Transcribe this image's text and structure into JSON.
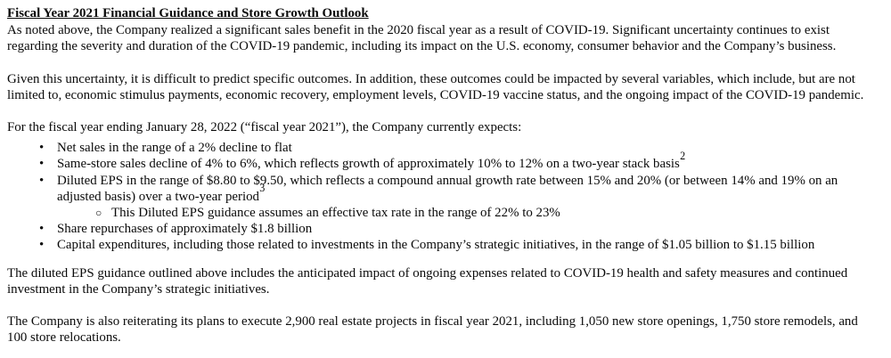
{
  "document": {
    "title": "Fiscal Year 2021 Financial Guidance and Store Growth Outlook",
    "paragraph_1": "As noted above, the Company realized a significant sales benefit in the 2020 fiscal year as a result of COVID-19. Significant uncertainty continues to exist regarding the severity and duration of the COVID-19 pandemic, including its impact on the U.S. economy, consumer behavior and the Company’s business.",
    "paragraph_2": "Given this uncertainty, it is difficult to predict specific outcomes. In addition, these outcomes could be impacted by several variables, which include, but are not limited to, economic stimulus payments, economic recovery, employment levels, COVID-19 vaccine status, and the ongoing impact of the COVID-19 pandemic.",
    "paragraph_3": "For the fiscal year ending January 28, 2022 (“fiscal year 2021”), the Company currently expects:",
    "bullets": [
      {
        "text": "Net sales in the range of a 2% decline to flat",
        "footnote": ""
      },
      {
        "text": "Same-store sales decline of 4% to 6%, which reflects growth of approximately 10% to 12% on a two-year stack basis",
        "footnote": "2"
      },
      {
        "text": "Diluted EPS in the range of $8.80 to $9.50, which reflects a compound annual growth rate between 15% and 20% (or between 14% and 19% on an adjusted basis) over a two-year period",
        "footnote": "3"
      },
      {
        "text": "Share repurchases of approximately $1.8 billion",
        "footnote": ""
      },
      {
        "text": "Capital expenditures, including those related to investments in the Company’s strategic initiatives, in the range of $1.05 billion to $1.15 billion",
        "footnote": ""
      }
    ],
    "sub_bullet": "This Diluted EPS guidance assumes an effective tax rate in the range of 22% to 23%",
    "bullet_marker": "•",
    "sub_bullet_marker": "○",
    "paragraph_4": "The diluted EPS guidance outlined above includes the anticipated impact of ongoing expenses related to COVID-19 health and safety measures and continued investment in the Company’s strategic initiatives.",
    "paragraph_5": "The Company is also reiterating its plans to execute 2,900 real estate projects in fiscal year 2021, including 1,050 new store openings, 1,750 store remodels, and 100 store relocations."
  }
}
